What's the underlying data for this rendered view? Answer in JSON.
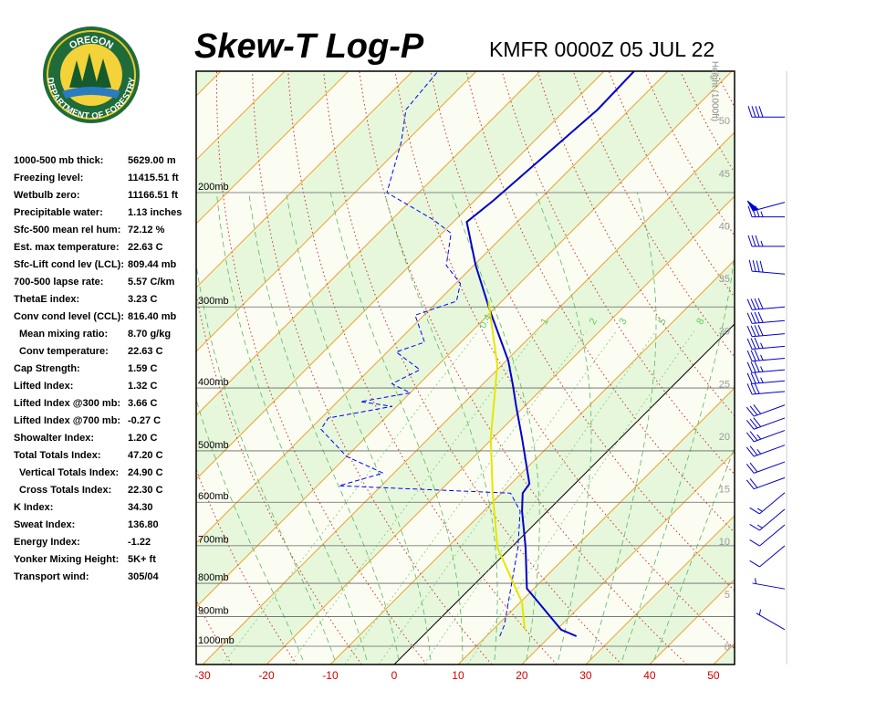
{
  "logo": {
    "top": "OREGON",
    "bottom": "DEPARTMENT OF FORESTRY"
  },
  "stats": [
    {
      "label": "1000-500 mb thick:",
      "value": "5629.00 m"
    },
    {
      "label": "Freezing level:",
      "value": "11415.51 ft"
    },
    {
      "label": "Wetbulb zero:",
      "value": "11166.51 ft"
    },
    {
      "label": "Precipitable water:",
      "value": "1.13 inches"
    },
    {
      "label": "Sfc-500 mean rel hum:",
      "value": "72.12 %"
    },
    {
      "label": "Est. max temperature:",
      "value": "22.63 C"
    },
    {
      "label": "Sfc-Lift cond lev (LCL):",
      "value": "809.44 mb"
    },
    {
      "label": "700-500 lapse rate:",
      "value": "5.57 C/km"
    },
    {
      "label": "ThetaE index:",
      "value": "3.23 C"
    },
    {
      "label": "Conv cond level (CCL):",
      "value": "816.40 mb"
    },
    {
      "label": "Mean mixing ratio:",
      "value": "8.70 g/kg",
      "indent": true
    },
    {
      "label": "Conv temperature:",
      "value": "22.63 C",
      "indent": true
    },
    {
      "label": "Cap Strength:",
      "value": "1.59 C"
    },
    {
      "label": "Lifted Index:",
      "value": "1.32 C"
    },
    {
      "label": "Lifted Index @300 mb:",
      "value": "3.66 C"
    },
    {
      "label": "Lifted Index @700 mb:",
      "value": "-0.27 C"
    },
    {
      "label": "Showalter Index:",
      "value": "1.20 C"
    },
    {
      "label": "Total Totals Index:",
      "value": "47.20 C"
    },
    {
      "label": "Vertical Totals Index:",
      "value": "24.90 C",
      "indent": true
    },
    {
      "label": "Cross Totals Index:",
      "value": "22.30 C",
      "indent": true
    },
    {
      "label": "K Index:",
      "value": "34.30"
    },
    {
      "label": "Sweat Index:",
      "value": "136.80"
    },
    {
      "label": "Energy Index:",
      "value": "-1.22"
    },
    {
      "label": "Yonker Mixing Height:",
      "value": "5K+ ft"
    },
    {
      "label": "Transport wind:",
      "value": "305/04"
    }
  ],
  "chart_data": {
    "type": "skewt",
    "title": "Skew-T Log-P",
    "subtitle": "KMFR 0000Z 05 JUL 22",
    "xlim": [
      -31,
      53.3
    ],
    "xticks": [
      -30,
      -20,
      -10,
      0,
      10,
      20,
      30,
      40,
      50
    ],
    "ylim": [
      1067,
      130
    ],
    "log_y": true,
    "yticks": [
      {
        "value": 200,
        "label": "200mb"
      },
      {
        "value": 300,
        "label": "300mb"
      },
      {
        "value": 400,
        "label": "400mb"
      },
      {
        "value": 500,
        "label": "500mb"
      },
      {
        "value": 600,
        "label": "600mb"
      },
      {
        "value": 700,
        "label": "700mb"
      },
      {
        "value": 800,
        "label": "800mb"
      },
      {
        "value": 900,
        "label": "900mb"
      },
      {
        "value": 1000,
        "label": "1000mb"
      }
    ],
    "y2label": "Height (1000ft)",
    "y2lim": [
      -1.6,
      54.8
    ],
    "y2ticks": [
      0,
      5,
      10,
      15,
      20,
      25,
      30,
      35,
      40,
      45,
      50
    ],
    "mixing_ratios": [
      0.4,
      1,
      2,
      3,
      5,
      8
    ],
    "series": [
      {
        "color": "#0000cc",
        "dash": false,
        "pressure": [
          965,
          943,
          815,
          705,
          619,
          581,
          562,
          478,
          427,
          394,
          363,
          304,
          259,
          222,
          206,
          149,
          130
        ],
        "temperature": [
          24.1,
          20.7,
          8.9,
          2.3,
          -4.0,
          -6.7,
          -7.1,
          -15.4,
          -21.3,
          -25.4,
          -29.7,
          -40.4,
          -49.7,
          -57.9,
          -57.1,
          -55,
          -55.3
        ]
      },
      {
        "color": "#0000ff",
        "dash": true,
        "pressure": [
          965,
          928,
          705,
          619,
          581,
          566,
          541,
          510,
          463,
          445,
          427,
          420,
          407,
          394,
          375,
          352,
          340,
          309,
          304,
          294,
          276,
          259,
          231,
          220,
          200,
          167,
          149,
          130
        ],
        "temperature": [
          12.1,
          11.1,
          1.1,
          -4.3,
          -8.6,
          -36.6,
          -31.7,
          -40,
          -48.3,
          -48.9,
          -40.7,
          -46.4,
          -40,
          -44.3,
          -42.1,
          -48.6,
          -45.7,
          -51.4,
          -50,
          -47.1,
          -49.3,
          -54.3,
          -58.6,
          -63.6,
          -75,
          -80.7,
          -85,
          -86
        ]
      },
      {
        "color": "#e6e600",
        "dash": false,
        "pressure": [
          943,
          856,
          705,
          581,
          478,
          369,
          294
        ],
        "temperature": [
          15,
          10.3,
          -2.1,
          -11.4,
          -20.3,
          -30.7,
          -42.1
        ]
      }
    ],
    "winds": {
      "pressure": [
        153,
        207,
        218,
        242,
        267,
        300,
        315,
        330,
        345,
        360,
        375,
        390,
        405,
        425,
        445,
        465,
        490,
        520,
        550,
        580,
        615,
        650,
        700,
        816,
        943
      ],
      "direction": [
        270,
        255,
        270,
        270,
        275,
        265,
        265,
        265,
        265,
        265,
        265,
        265,
        265,
        250,
        250,
        250,
        250,
        250,
        250,
        230,
        230,
        230,
        230,
        280,
        300
      ],
      "speed": [
        40,
        50,
        35,
        35,
        40,
        40,
        40,
        40,
        35,
        35,
        35,
        35,
        30,
        30,
        30,
        25,
        25,
        20,
        20,
        15,
        15,
        10,
        10,
        5,
        5
      ]
    }
  }
}
